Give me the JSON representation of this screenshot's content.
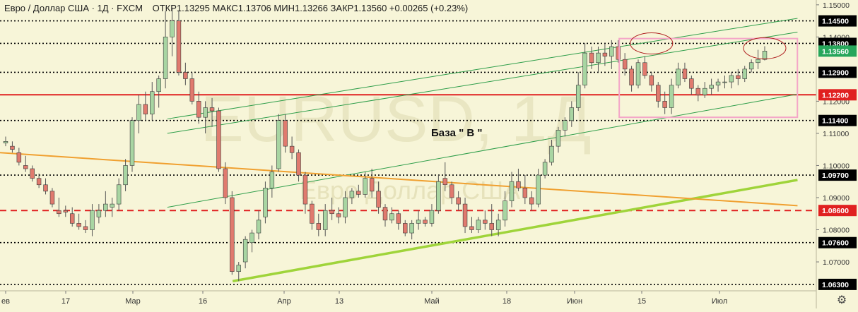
{
  "header": {
    "symbol": "Евро / Доллар США · 1Д · FXCM",
    "ohlc": "ОТКР1.13295 МАКС1.13706 МИН1.13266 ЗАКР1.13560 +0.00265 (+0.23%)"
  },
  "watermark": {
    "ticker": "EURUSD, 1Д",
    "name": "Евро Доллар США"
  },
  "annotation": "База \" В \"",
  "colors": {
    "up": "#a8d5a2",
    "down": "#e07a6e",
    "wick": "#555",
    "bg": "#f7f5d8",
    "trend_green": "#2e9e4a",
    "support_yellowgreen": "#9fd43a",
    "orange": "#f0a030",
    "red": "#e02020",
    "box": "#f4a6c8"
  },
  "chart_data": {
    "type": "candlestick",
    "title": "Евро / Доллар США · 1Д · FXCM",
    "y_axis": {
      "ticks": [
        "1.15000",
        "1.14000",
        "1.12000",
        "1.11000",
        "1.10000",
        "1.09000",
        "1.08000",
        "1.07000"
      ],
      "ylim": [
        1.061,
        1.1515
      ]
    },
    "x_axis": {
      "labels": [
        "ев",
        "17",
        "Мар",
        "16",
        "Апр",
        "13",
        "Май",
        "18",
        "Июн",
        "15",
        "Июл"
      ]
    },
    "levels": [
      {
        "value": 1.145,
        "label": "1.14500",
        "style": "dotted"
      },
      {
        "value": 1.138,
        "label": "1.13800",
        "style": "dotted"
      },
      {
        "value": 1.1356,
        "label": "1.13560",
        "style": "current"
      },
      {
        "value": 1.129,
        "label": "1.12900",
        "style": "dotted"
      },
      {
        "value": 1.122,
        "label": "1.12200",
        "style": "solid-red"
      },
      {
        "value": 1.114,
        "label": "1.11400",
        "style": "dotted"
      },
      {
        "value": 1.097,
        "label": "1.09700",
        "style": "dotted"
      },
      {
        "value": 1.086,
        "label": "1.08600",
        "style": "dashed-red"
      },
      {
        "value": 1.076,
        "label": "1.07600",
        "style": "dotted"
      },
      {
        "value": 1.063,
        "label": "1.06300",
        "style": "dotted"
      }
    ],
    "candles": [
      [
        1.107,
        1.109,
        1.106,
        1.1075
      ],
      [
        1.106,
        1.1075,
        1.104,
        1.105
      ],
      [
        1.104,
        1.1055,
        1.1,
        1.101
      ],
      [
        1.1,
        1.103,
        1.098,
        1.099
      ],
      [
        1.099,
        1.1,
        1.095,
        1.096
      ],
      [
        1.096,
        1.0975,
        1.093,
        1.094
      ],
      [
        1.094,
        1.096,
        1.091,
        1.092
      ],
      [
        1.092,
        1.093,
        1.087,
        1.088
      ],
      [
        1.086,
        1.09,
        1.084,
        1.085
      ],
      [
        1.086,
        1.0875,
        1.084,
        1.0855
      ],
      [
        1.085,
        1.087,
        1.081,
        1.082
      ],
      [
        1.082,
        1.085,
        1.08,
        1.081
      ],
      [
        1.081,
        1.083,
        1.079,
        1.08
      ],
      [
        1.08,
        1.088,
        1.078,
        1.086
      ],
      [
        1.084,
        1.088,
        1.082,
        1.086
      ],
      [
        1.086,
        1.092,
        1.084,
        1.088
      ],
      [
        1.087,
        1.09,
        1.084,
        1.088
      ],
      [
        1.088,
        1.096,
        1.086,
        1.094
      ],
      [
        1.094,
        1.102,
        1.092,
        1.1
      ],
      [
        1.1,
        1.115,
        1.098,
        1.114
      ],
      [
        1.114,
        1.122,
        1.11,
        1.119
      ],
      [
        1.119,
        1.123,
        1.114,
        1.116
      ],
      [
        1.116,
        1.126,
        1.114,
        1.123
      ],
      [
        1.123,
        1.128,
        1.118,
        1.127
      ],
      [
        1.127,
        1.148,
        1.124,
        1.14
      ],
      [
        1.14,
        1.149,
        1.134,
        1.145
      ],
      [
        1.145,
        1.148,
        1.128,
        1.129
      ],
      [
        1.129,
        1.132,
        1.125,
        1.127
      ],
      [
        1.127,
        1.129,
        1.119,
        1.12
      ],
      [
        1.12,
        1.123,
        1.113,
        1.115
      ],
      [
        1.115,
        1.12,
        1.11,
        1.118
      ],
      [
        1.118,
        1.121,
        1.112,
        1.117
      ],
      [
        1.117,
        1.118,
        1.098,
        1.099
      ],
      [
        1.099,
        1.101,
        1.088,
        1.09
      ],
      [
        1.09,
        1.092,
        1.066,
        1.067
      ],
      [
        1.067,
        1.07,
        1.064,
        1.069
      ],
      [
        1.07,
        1.078,
        1.068,
        1.077
      ],
      [
        1.076,
        1.08,
        1.073,
        1.079
      ],
      [
        1.079,
        1.086,
        1.077,
        1.083
      ],
      [
        1.084,
        1.095,
        1.082,
        1.093
      ],
      [
        1.093,
        1.1,
        1.09,
        1.098
      ],
      [
        1.099,
        1.116,
        1.098,
        1.114
      ],
      [
        1.114,
        1.116,
        1.104,
        1.106
      ],
      [
        1.106,
        1.109,
        1.102,
        1.104
      ],
      [
        1.104,
        1.105,
        1.095,
        1.097
      ],
      [
        1.097,
        1.098,
        1.085,
        1.088
      ],
      [
        1.088,
        1.089,
        1.08,
        1.082
      ],
      [
        1.082,
        1.085,
        1.078,
        1.08
      ],
      [
        1.08,
        1.088,
        1.078,
        1.086
      ],
      [
        1.086,
        1.09,
        1.083,
        1.085
      ],
      [
        1.085,
        1.087,
        1.082,
        1.084
      ],
      [
        1.084,
        1.092,
        1.082,
        1.09
      ],
      [
        1.09,
        1.093,
        1.088,
        1.092
      ],
      [
        1.092,
        1.094,
        1.09,
        1.091
      ],
      [
        1.091,
        1.098,
        1.09,
        1.096
      ],
      [
        1.096,
        1.099,
        1.09,
        1.092
      ],
      [
        1.092,
        1.095,
        1.085,
        1.087
      ],
      [
        1.087,
        1.088,
        1.081,
        1.083
      ],
      [
        1.083,
        1.087,
        1.082,
        1.085
      ],
      [
        1.085,
        1.086,
        1.08,
        1.082
      ],
      [
        1.082,
        1.083,
        1.078,
        1.079
      ],
      [
        1.079,
        1.083,
        1.077,
        1.082
      ],
      [
        1.082,
        1.086,
        1.08,
        1.083
      ],
      [
        1.083,
        1.084,
        1.081,
        1.082
      ],
      [
        1.082,
        1.088,
        1.081,
        1.086
      ],
      [
        1.086,
        1.097,
        1.085,
        1.095
      ],
      [
        1.096,
        1.101,
        1.092,
        1.094
      ],
      [
        1.094,
        1.095,
        1.088,
        1.09
      ],
      [
        1.09,
        1.092,
        1.086,
        1.088
      ],
      [
        1.088,
        1.09,
        1.079,
        1.081
      ],
      [
        1.081,
        1.084,
        1.079,
        1.08
      ],
      [
        1.08,
        1.084,
        1.079,
        1.083
      ],
      [
        1.083,
        1.086,
        1.08,
        1.082
      ],
      [
        1.082,
        1.088,
        1.078,
        1.08
      ],
      [
        1.08,
        1.085,
        1.078,
        1.083
      ],
      [
        1.083,
        1.092,
        1.081,
        1.089
      ],
      [
        1.089,
        1.098,
        1.087,
        1.095
      ],
      [
        1.095,
        1.099,
        1.092,
        1.093
      ],
      [
        1.093,
        1.097,
        1.088,
        1.09
      ],
      [
        1.09,
        1.092,
        1.086,
        1.088
      ],
      [
        1.088,
        1.099,
        1.087,
        1.097
      ],
      [
        1.097,
        1.102,
        1.096,
        1.101
      ],
      [
        1.101,
        1.108,
        1.1,
        1.106
      ],
      [
        1.106,
        1.112,
        1.104,
        1.111
      ],
      [
        1.111,
        1.115,
        1.109,
        1.114
      ],
      [
        1.114,
        1.12,
        1.112,
        1.118
      ],
      [
        1.118,
        1.129,
        1.117,
        1.125
      ],
      [
        1.125,
        1.138,
        1.124,
        1.135
      ],
      [
        1.135,
        1.137,
        1.13,
        1.132
      ],
      [
        1.132,
        1.137,
        1.129,
        1.135
      ],
      [
        1.135,
        1.138,
        1.131,
        1.134
      ],
      [
        1.134,
        1.139,
        1.13,
        1.137
      ],
      [
        1.137,
        1.139,
        1.132,
        1.133
      ],
      [
        1.133,
        1.135,
        1.128,
        1.13
      ],
      [
        1.13,
        1.131,
        1.123,
        1.125
      ],
      [
        1.125,
        1.133,
        1.124,
        1.132
      ],
      [
        1.132,
        1.134,
        1.127,
        1.128
      ],
      [
        1.128,
        1.129,
        1.123,
        1.125
      ],
      [
        1.125,
        1.126,
        1.118,
        1.12
      ],
      [
        1.12,
        1.123,
        1.116,
        1.118
      ],
      [
        1.118,
        1.127,
        1.116,
        1.125
      ],
      [
        1.125,
        1.132,
        1.124,
        1.13
      ],
      [
        1.13,
        1.132,
        1.126,
        1.127
      ],
      [
        1.127,
        1.128,
        1.122,
        1.124
      ],
      [
        1.124,
        1.125,
        1.12,
        1.122
      ],
      [
        1.122,
        1.126,
        1.121,
        1.124
      ],
      [
        1.124,
        1.127,
        1.122,
        1.125
      ],
      [
        1.125,
        1.127,
        1.123,
        1.126
      ],
      [
        1.126,
        1.128,
        1.124,
        1.126
      ],
      [
        1.126,
        1.129,
        1.124,
        1.128
      ],
      [
        1.128,
        1.13,
        1.125,
        1.127
      ],
      [
        1.127,
        1.131,
        1.126,
        1.13
      ],
      [
        1.13,
        1.133,
        1.129,
        1.132
      ],
      [
        1.132,
        1.136,
        1.13,
        1.133
      ],
      [
        1.133,
        1.1371,
        1.1327,
        1.1356
      ]
    ],
    "trend_lines": [
      {
        "name": "channel-upper",
        "color": "#2e9e4a",
        "from": [
          0.205,
          1.1145
        ],
        "to": [
          0.977,
          1.1458
        ]
      },
      {
        "name": "channel-mid",
        "color": "#2e9e4a",
        "from": [
          0.205,
          1.11
        ],
        "to": [
          0.977,
          1.1415
        ]
      },
      {
        "name": "channel-lower",
        "color": "#2e9e4a",
        "from": [
          0.205,
          1.087
        ],
        "to": [
          0.977,
          1.1222
        ]
      },
      {
        "name": "support",
        "color": "#9fd43a",
        "from": [
          0.285,
          1.064
        ],
        "to": [
          0.977,
          1.0955
        ]
      },
      {
        "name": "resistance-orange",
        "color": "#f0a030",
        "from": [
          0.0,
          1.104
        ],
        "to": [
          0.977,
          1.0875
        ]
      }
    ],
    "range_box": {
      "top": 1.1395,
      "bottom": 1.115,
      "start_index": 93,
      "end_index": 117
    },
    "ellipses": [
      {
        "index": 97,
        "price": 1.138
      },
      {
        "index": 114,
        "price": 1.1365
      }
    ]
  }
}
